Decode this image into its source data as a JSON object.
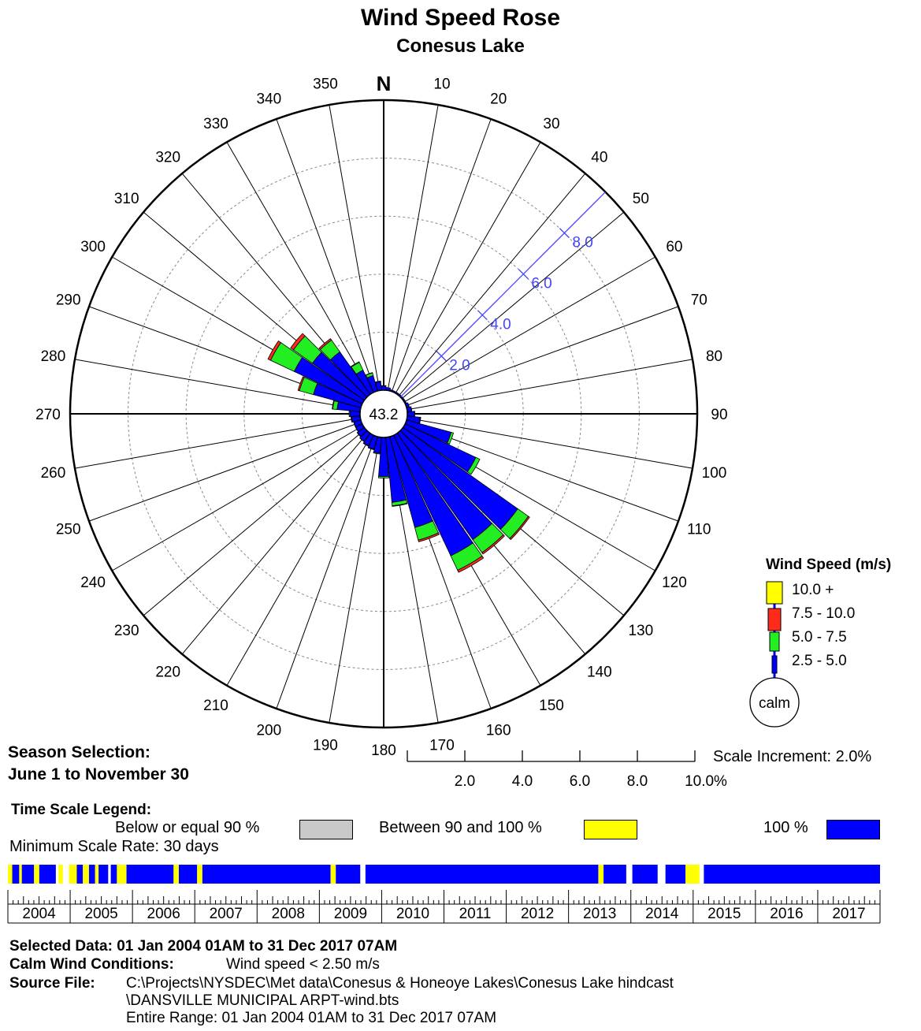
{
  "header": {
    "title": "Wind Speed Rose",
    "subtitle": "Conesus Lake",
    "north": "N"
  },
  "chart_data": {
    "type": "wind-rose",
    "title": "Wind Speed Rose",
    "subtitle": "Conesus Lake",
    "calm_percent": "43.2",
    "direction_labels": [
      "10",
      "20",
      "30",
      "40",
      "50",
      "60",
      "70",
      "80",
      "90",
      "100",
      "110",
      "120",
      "130",
      "140",
      "150",
      "160",
      "170",
      "180",
      "190",
      "200",
      "210",
      "220",
      "230",
      "240",
      "250",
      "260",
      "270",
      "280",
      "290",
      "300",
      "310",
      "320",
      "330",
      "340",
      "350"
    ],
    "scale_ring_percent": [
      2,
      4,
      6,
      8,
      10
    ],
    "scale_axis_labels": [
      "2.0",
      "4.0",
      "6.0",
      "8.0",
      "10.0%"
    ],
    "inline_scale_labels": [
      "2.0",
      "4.0",
      "6.0",
      "8.0"
    ],
    "scale_increment": "Scale Increment: 2.0%",
    "sector_width_deg": 10,
    "speed_bins": [
      "2.5 - 5.0",
      "5.0 - 7.5",
      "7.5 - 10.0",
      "10.0 +"
    ],
    "sectors": [
      {
        "dir": 0,
        "values": [
          0.15,
          0.01,
          0,
          0
        ]
      },
      {
        "dir": 10,
        "values": [
          0.1,
          0,
          0,
          0
        ]
      },
      {
        "dir": 20,
        "values": [
          0.05,
          0,
          0,
          0
        ]
      },
      {
        "dir": 30,
        "values": [
          0.05,
          0,
          0,
          0
        ]
      },
      {
        "dir": 40,
        "values": [
          0.05,
          0,
          0,
          0
        ]
      },
      {
        "dir": 50,
        "values": [
          0.05,
          0,
          0,
          0
        ]
      },
      {
        "dir": 60,
        "values": [
          0.05,
          0,
          0,
          0
        ]
      },
      {
        "dir": 70,
        "values": [
          0.1,
          0,
          0,
          0
        ]
      },
      {
        "dir": 80,
        "values": [
          0.15,
          0.01,
          0,
          0
        ]
      },
      {
        "dir": 90,
        "values": [
          0.25,
          0.01,
          0,
          0
        ]
      },
      {
        "dir": 100,
        "values": [
          0.45,
          0.02,
          0,
          0
        ]
      },
      {
        "dir": 110,
        "values": [
          1.6,
          0.08,
          0,
          0
        ]
      },
      {
        "dir": 120,
        "values": [
          2.7,
          0.15,
          0,
          0
        ]
      },
      {
        "dir": 130,
        "values": [
          4.85,
          0.45,
          0.05,
          0
        ]
      },
      {
        "dir": 140,
        "values": [
          4.5,
          0.55,
          0.06,
          0
        ]
      },
      {
        "dir": 150,
        "values": [
          4.6,
          0.55,
          0.08,
          0
        ]
      },
      {
        "dir": 160,
        "values": [
          3.25,
          0.45,
          0.06,
          0
        ]
      },
      {
        "dir": 170,
        "values": [
          2.25,
          0.12,
          0.02,
          0
        ]
      },
      {
        "dir": 180,
        "values": [
          1.35,
          0.05,
          0,
          0
        ]
      },
      {
        "dir": 190,
        "values": [
          0.55,
          0.03,
          0,
          0
        ]
      },
      {
        "dir": 200,
        "values": [
          0.45,
          0.02,
          0,
          0
        ]
      },
      {
        "dir": 210,
        "values": [
          0.4,
          0.02,
          0,
          0
        ]
      },
      {
        "dir": 220,
        "values": [
          0.35,
          0.01,
          0,
          0
        ]
      },
      {
        "dir": 230,
        "values": [
          0.3,
          0.01,
          0,
          0
        ]
      },
      {
        "dir": 240,
        "values": [
          0.25,
          0.01,
          0,
          0
        ]
      },
      {
        "dir": 250,
        "values": [
          0.25,
          0.01,
          0,
          0
        ]
      },
      {
        "dir": 260,
        "values": [
          0.3,
          0.02,
          0,
          0
        ]
      },
      {
        "dir": 270,
        "values": [
          0.35,
          0.03,
          0,
          0
        ]
      },
      {
        "dir": 280,
        "values": [
          0.8,
          0.15,
          0.02,
          0
        ]
      },
      {
        "dir": 290,
        "values": [
          1.7,
          0.5,
          0.05,
          0
        ]
      },
      {
        "dir": 300,
        "values": [
          2.6,
          0.9,
          0.1,
          0
        ]
      },
      {
        "dir": 310,
        "values": [
          2.2,
          0.8,
          0.12,
          0
        ]
      },
      {
        "dir": 320,
        "values": [
          1.8,
          0.5,
          0.06,
          0
        ]
      },
      {
        "dir": 330,
        "values": [
          0.85,
          0.3,
          0.02,
          0
        ]
      },
      {
        "dir": 340,
        "values": [
          0.55,
          0.1,
          0.01,
          0
        ]
      },
      {
        "dir": 350,
        "values": [
          0.3,
          0.02,
          0,
          0
        ]
      }
    ]
  },
  "legend": {
    "title": "Wind Speed (m/s)",
    "items": [
      {
        "label": "10.0 +",
        "color": "#ffff00"
      },
      {
        "label": "7.5 - 10.0",
        "color": "#ff2a1a"
      },
      {
        "label": "5.0 - 7.5",
        "color": "#22ee22"
      },
      {
        "label": "2.5 - 5.0",
        "color": "#0000ff"
      }
    ],
    "calm_label": "calm"
  },
  "colors": {
    "bin_2_5_5": "#0000ff",
    "bin_5_7_5": "#22ee22",
    "bin_7_5_10": "#ff2a1a",
    "bin_10_plus": "#ffff00",
    "scale_line": "#4444ff"
  },
  "season": {
    "label": "Season Selection:",
    "range": "June 1 to November 30"
  },
  "time_scale": {
    "title": "Time Scale Legend:",
    "below90_label": "Below or equal 90 %",
    "between_label": "Between 90 and 100 %",
    "full_label": "100 %",
    "below90_color": "#c8c8c8",
    "between_color": "#ffff00",
    "full_color": "#0000ff",
    "min_rate": "Minimum Scale Rate: 30 days",
    "years": [
      "2004",
      "2005",
      "2006",
      "2007",
      "2008",
      "2009",
      "2010",
      "2011",
      "2012",
      "2013",
      "2014",
      "2015",
      "2016",
      "2017"
    ]
  },
  "info": {
    "selected_label": "Selected Data: 01 Jan 2004 01AM to 31 Dec 2017 07AM",
    "calm_label": "Calm Wind Conditions:",
    "calm_value": "Wind speed < 2.50 m/s",
    "source_label": "Source File:",
    "source_line1": "C:\\Projects\\NYSDEC\\Met data\\Conesus & Honeoye Lakes\\Conesus Lake hindcast",
    "source_line2": "\\DANSVILLE MUNICIPAL ARPT-wind.bts",
    "range_line": "Entire Range: 01 Jan 2004 01AM to 31 Dec 2017 07AM"
  }
}
